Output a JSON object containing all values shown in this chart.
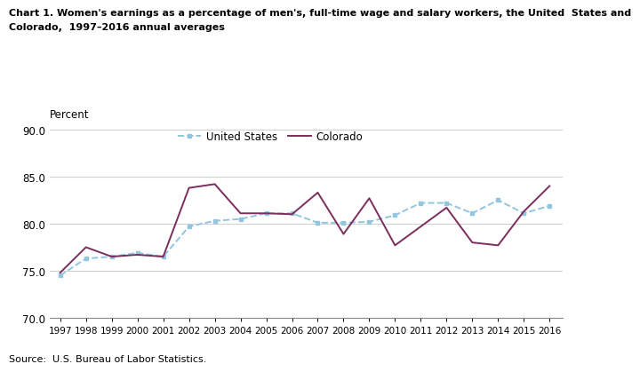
{
  "years": [
    1997,
    1998,
    1999,
    2000,
    2001,
    2002,
    2003,
    2004,
    2005,
    2006,
    2007,
    2008,
    2009,
    2010,
    2011,
    2012,
    2013,
    2014,
    2015,
    2016
  ],
  "us_values": [
    74.5,
    76.3,
    76.5,
    76.9,
    76.5,
    79.7,
    80.3,
    80.5,
    81.1,
    81.1,
    80.1,
    80.1,
    80.2,
    80.9,
    82.2,
    82.2,
    81.1,
    82.5,
    81.1,
    81.9
  ],
  "co_values": [
    74.8,
    77.5,
    76.5,
    76.7,
    76.5,
    83.8,
    84.2,
    81.1,
    81.1,
    81.0,
    83.3,
    78.9,
    82.7,
    77.7,
    79.7,
    81.7,
    78.0,
    77.7,
    81.3,
    84.0
  ],
  "us_color": "#92C5DE",
  "co_color": "#7B2D5E",
  "title_line1": "Chart 1. Women's earnings as a percentage of men's, full-time wage and salary workers, the United  States and",
  "title_line2": "Colorado,  1997–2016 annual averages",
  "ylabel": "Percent",
  "ylim": [
    70.0,
    90.0
  ],
  "yticks": [
    70.0,
    75.0,
    80.0,
    85.0,
    90.0
  ],
  "source": "Source:  U.S. Bureau of Labor Statistics.",
  "us_label": "United States",
  "co_label": "Colorado",
  "background_color": "#ffffff",
  "grid_color": "#d0d0d0"
}
